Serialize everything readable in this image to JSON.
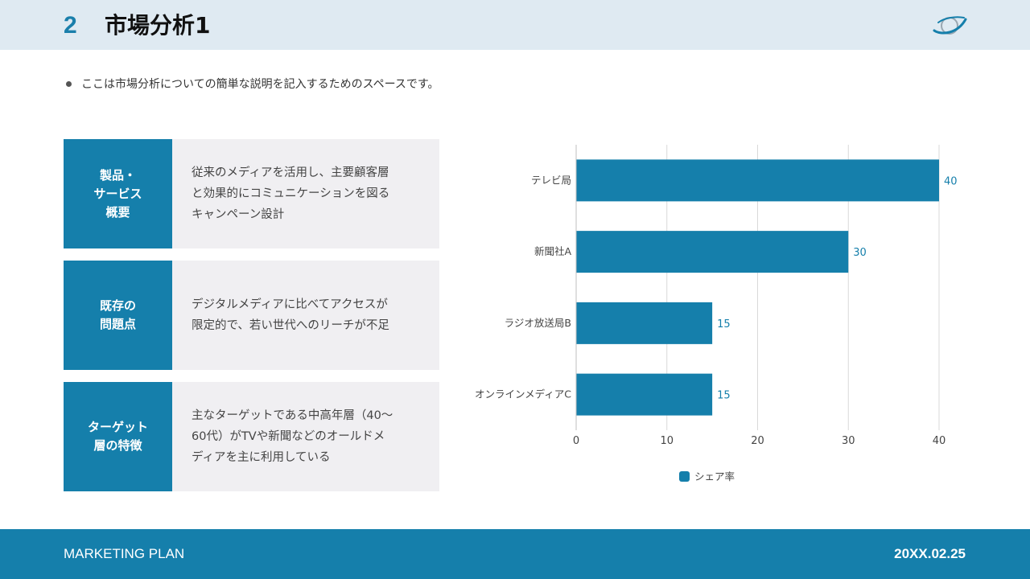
{
  "header": {
    "number": "2",
    "title": "市場分析1",
    "logo_icon": "globe-swoosh-icon"
  },
  "bullet": "ここは市場分析についての簡単な説明を記入するためのスペースです。",
  "cards": [
    {
      "label": "製品・\nサービス\n概要",
      "text": "従来のメディアを活用し、主要顧客層\nと効果的にコミュニケーションを図る\nキャンペーン設計"
    },
    {
      "label": "既存の\n問題点",
      "text": "デジタルメディアに比べてアクセスが\n限定的で、若い世代へのリーチが不足"
    },
    {
      "label": "ターゲット\n層の特徴",
      "text": "主なターゲットである中高年層（40〜\n60代）がTVや新聞などのオールドメ\nディアを主に利用している"
    }
  ],
  "chart_data": {
    "type": "bar",
    "orientation": "horizontal",
    "categories": [
      "テレビ局",
      "新聞社A",
      "ラジオ放送局B",
      "オンラインメディアC"
    ],
    "series": [
      {
        "name": "シェア率",
        "values": [
          40,
          30,
          15,
          15
        ],
        "color": "#157fab"
      }
    ],
    "xlim": [
      0,
      40
    ],
    "xticks": [
      0,
      10,
      20,
      30,
      40
    ],
    "grid": true,
    "data_labels": true,
    "legend": "bottom"
  },
  "footer": {
    "left": "MARKETING PLAN",
    "right": "20XX.02.25"
  },
  "colors": {
    "accent": "#157fab",
    "header_bg": "#dfeaf2",
    "card_bg": "#f0eff2"
  }
}
